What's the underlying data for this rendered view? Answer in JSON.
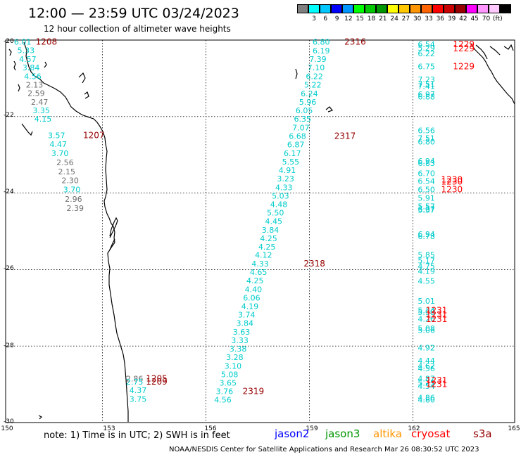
{
  "header": {
    "title": "12:00 — 23:59 UTC 03/24/2023",
    "subtitle": "12 hour collection of altimeter wave heights"
  },
  "colorbar": {
    "colors": [
      "#7f7f7f",
      "#00ffff",
      "#00c8ff",
      "#0000ff",
      "#0096ff",
      "#00ff00",
      "#00c800",
      "#009600",
      "#ffff00",
      "#ffc800",
      "#ff9600",
      "#ff6400",
      "#ff0000",
      "#c80000",
      "#960000",
      "#ff00ff",
      "#ff96ff",
      "#ffc8ff",
      "#000000"
    ],
    "labels": [
      "3",
      "6",
      "9",
      "12",
      "15",
      "18",
      "21",
      "24",
      "27",
      "30",
      "33",
      "36",
      "39",
      "42",
      "45",
      "70",
      "(ft)"
    ]
  },
  "axes": {
    "lat_ticks": [
      "-20",
      "-22",
      "-24",
      "-26",
      "-28",
      "-30"
    ],
    "lon_ticks": [
      "150",
      "153",
      "156",
      "159",
      "162",
      "165"
    ]
  },
  "track_colors": {
    "cyan": "#00cccc",
    "gray": "#6e6e6e",
    "time_dark": "#960000",
    "time_red": "#ff0000"
  },
  "tracks": [
    {
      "id": "t1208",
      "time": "1208",
      "time_lon": 151.2,
      "time_lat": -20.05,
      "time_color": "time_dark",
      "points": [
        {
          "lon": 150.5,
          "lat": -20.05,
          "v": "6.01",
          "c": "cyan"
        },
        {
          "lon": 150.6,
          "lat": -20.27,
          "v": "5.33",
          "c": "cyan"
        },
        {
          "lon": 150.65,
          "lat": -20.5,
          "v": "4.57",
          "c": "cyan"
        },
        {
          "lon": 150.75,
          "lat": -20.72,
          "v": "3.84",
          "c": "cyan"
        },
        {
          "lon": 150.8,
          "lat": -20.95,
          "v": "4.56",
          "c": "cyan"
        },
        {
          "lon": 150.85,
          "lat": -21.17,
          "v": "2.13",
          "c": "gray"
        },
        {
          "lon": 150.9,
          "lat": -21.39,
          "v": "2.59",
          "c": "gray"
        },
        {
          "lon": 151.0,
          "lat": -21.62,
          "v": "2.47",
          "c": "gray"
        },
        {
          "lon": 151.05,
          "lat": -21.84,
          "v": "3.35",
          "c": "cyan"
        },
        {
          "lon": 151.1,
          "lat": -22.06,
          "v": "4.15",
          "c": "cyan"
        }
      ]
    },
    {
      "id": "t1207",
      "time": "1207",
      "time_lon": 152.6,
      "time_lat": -22.49,
      "time_color": "time_dark",
      "points": [
        {
          "lon": 151.5,
          "lat": -22.49,
          "v": "3.57",
          "c": "cyan"
        },
        {
          "lon": 151.55,
          "lat": -22.72,
          "v": "4.47",
          "c": "cyan"
        },
        {
          "lon": 151.6,
          "lat": -22.96,
          "v": "3.70",
          "c": "cyan"
        },
        {
          "lon": 151.75,
          "lat": -23.2,
          "v": "2.56",
          "c": "gray"
        },
        {
          "lon": 151.8,
          "lat": -23.44,
          "v": "2.15",
          "c": "gray"
        },
        {
          "lon": 151.9,
          "lat": -23.67,
          "v": "2.30",
          "c": "gray"
        },
        {
          "lon": 151.95,
          "lat": -23.91,
          "v": "3.70",
          "c": "cyan"
        },
        {
          "lon": 152.0,
          "lat": -24.15,
          "v": "2.96",
          "c": "gray"
        },
        {
          "lon": 152.05,
          "lat": -24.39,
          "v": "2.39",
          "c": "gray"
        }
      ]
    },
    {
      "id": "t2316",
      "time": "2316",
      "time_lon": 160.3,
      "time_lat": -20.05,
      "time_color": "time_dark",
      "points": [
        {
          "lon": 159.3,
          "lat": -20.05,
          "v": "6.80",
          "c": "cyan"
        },
        {
          "lon": 159.3,
          "lat": -20.28,
          "v": "6.19",
          "c": "cyan"
        },
        {
          "lon": 159.2,
          "lat": -20.5,
          "v": "7.39",
          "c": "cyan"
        },
        {
          "lon": 159.15,
          "lat": -20.72,
          "v": "7.10",
          "c": "cyan"
        },
        {
          "lon": 159.1,
          "lat": -20.95,
          "v": "6.22",
          "c": "cyan"
        },
        {
          "lon": 159.05,
          "lat": -21.17,
          "v": "5.22",
          "c": "cyan"
        },
        {
          "lon": 158.95,
          "lat": -21.4,
          "v": "6.24",
          "c": "cyan"
        },
        {
          "lon": 158.9,
          "lat": -21.62,
          "v": "5.96",
          "c": "cyan"
        },
        {
          "lon": 158.8,
          "lat": -21.84,
          "v": "6.05",
          "c": "cyan"
        },
        {
          "lon": 158.75,
          "lat": -22.06,
          "v": "6.35",
          "c": "cyan"
        },
        {
          "lon": 158.7,
          "lat": -22.29,
          "v": "7.07",
          "c": "cyan"
        }
      ]
    },
    {
      "id": "t2317",
      "time": "2317",
      "time_lon": 160.0,
      "time_lat": -22.51,
      "time_color": "time_dark",
      "points": [
        {
          "lon": 158.6,
          "lat": -22.51,
          "v": "6.68",
          "c": "cyan"
        },
        {
          "lon": 158.55,
          "lat": -22.73,
          "v": "6.87",
          "c": "cyan"
        },
        {
          "lon": 158.45,
          "lat": -22.96,
          "v": "6.17",
          "c": "cyan"
        },
        {
          "lon": 158.4,
          "lat": -23.18,
          "v": "5.55",
          "c": "cyan"
        },
        {
          "lon": 158.3,
          "lat": -23.4,
          "v": "4.91",
          "c": "cyan"
        },
        {
          "lon": 158.25,
          "lat": -23.62,
          "v": "3.23",
          "c": "cyan"
        },
        {
          "lon": 158.2,
          "lat": -23.85,
          "v": "4.33",
          "c": "cyan"
        },
        {
          "lon": 158.1,
          "lat": -24.07,
          "v": "5.03",
          "c": "cyan"
        },
        {
          "lon": 158.05,
          "lat": -24.29,
          "v": "4.48",
          "c": "cyan"
        },
        {
          "lon": 157.95,
          "lat": -24.51,
          "v": "5.50",
          "c": "cyan"
        },
        {
          "lon": 157.9,
          "lat": -24.73,
          "v": "4.45",
          "c": "cyan"
        },
        {
          "lon": 157.8,
          "lat": -24.96,
          "v": "3.84",
          "c": "cyan"
        },
        {
          "lon": 157.75,
          "lat": -25.18,
          "v": "4.25",
          "c": "cyan"
        },
        {
          "lon": 157.7,
          "lat": -25.4,
          "v": "4.25",
          "c": "cyan"
        },
        {
          "lon": 157.6,
          "lat": -25.62,
          "v": "4.12",
          "c": "cyan"
        }
      ]
    },
    {
      "id": "t2318",
      "time": "2318",
      "time_lon": 159.1,
      "time_lat": -25.85,
      "time_color": "time_dark",
      "points": [
        {
          "lon": 157.5,
          "lat": -25.85,
          "v": "4.33",
          "c": "cyan"
        },
        {
          "lon": 157.45,
          "lat": -26.07,
          "v": "4.65",
          "c": "cyan"
        },
        {
          "lon": 157.35,
          "lat": -26.29,
          "v": "4.25",
          "c": "cyan"
        },
        {
          "lon": 157.3,
          "lat": -26.52,
          "v": "4.40",
          "c": "cyan"
        },
        {
          "lon": 157.25,
          "lat": -26.74,
          "v": "6.06",
          "c": "cyan"
        },
        {
          "lon": 157.2,
          "lat": -26.96,
          "v": "4.19",
          "c": "cyan"
        },
        {
          "lon": 157.1,
          "lat": -27.18,
          "v": "3.74",
          "c": "cyan"
        },
        {
          "lon": 157.05,
          "lat": -27.4,
          "v": "3.84",
          "c": "cyan"
        },
        {
          "lon": 156.95,
          "lat": -27.63,
          "v": "3.63",
          "c": "cyan"
        },
        {
          "lon": 156.9,
          "lat": -27.85,
          "v": "3.33",
          "c": "cyan"
        },
        {
          "lon": 156.85,
          "lat": -28.07,
          "v": "3.38",
          "c": "cyan"
        },
        {
          "lon": 156.75,
          "lat": -28.29,
          "v": "3.28",
          "c": "cyan"
        },
        {
          "lon": 156.7,
          "lat": -28.52,
          "v": "3.10",
          "c": "cyan"
        },
        {
          "lon": 156.6,
          "lat": -28.74,
          "v": "5.08",
          "c": "cyan"
        },
        {
          "lon": 156.55,
          "lat": -28.96,
          "v": "3.65",
          "c": "cyan"
        }
      ]
    },
    {
      "id": "t2319",
      "time": "2319",
      "time_lon": 157.3,
      "time_lat": -29.18,
      "time_color": "time_dark",
      "points": [
        {
          "lon": 156.45,
          "lat": -29.18,
          "v": "3.76",
          "c": "cyan"
        },
        {
          "lon": 156.4,
          "lat": -29.4,
          "v": "4.56",
          "c": "cyan"
        }
      ]
    },
    {
      "id": "t1205",
      "time": "1205",
      "time_lon": 154.45,
      "time_lat": -28.85,
      "time_color": "time_dark",
      "points": [
        {
          "lon": 153.8,
          "lat": -28.85,
          "v": "2.86",
          "c": "gray"
        }
      ]
    },
    {
      "id": "t1209",
      "time": "1209",
      "time_lon": 154.45,
      "time_lat": -28.93,
      "time_color": "time_dark",
      "points": [
        {
          "lon": 153.8,
          "lat": -28.93,
          "v": "2.75",
          "c": "cyan"
        },
        {
          "lon": 153.9,
          "lat": -29.15,
          "v": "4.37",
          "c": "cyan"
        },
        {
          "lon": 153.9,
          "lat": -29.38,
          "v": "3.75",
          "c": "cyan"
        }
      ]
    },
    {
      "id": "t1229",
      "time": "1229",
      "time_lon": 163.5,
      "time_lat": -20.11,
      "time_color": "time_red",
      "points": [
        {
          "lon": 162.4,
          "lat": -20.11,
          "v": "6.54",
          "c": "cyan"
        },
        {
          "lon": 162.4,
          "lat": -20.2,
          "v": "5.29",
          "c": "cyan"
        },
        {
          "lon": 162.4,
          "lat": -20.35,
          "v": "6.22",
          "c": "cyan"
        },
        {
          "lon": 162.4,
          "lat": -20.69,
          "v": "6.75",
          "c": "cyan"
        },
        {
          "lon": 162.4,
          "lat": -21.03,
          "v": "7.23",
          "c": "cyan"
        },
        {
          "lon": 162.4,
          "lat": -21.15,
          "v": "7.51",
          "c": "cyan"
        },
        {
          "lon": 162.4,
          "lat": -21.2,
          "v": "7.41",
          "c": "cyan"
        },
        {
          "lon": 162.4,
          "lat": -21.42,
          "v": "6.97",
          "c": "cyan"
        },
        {
          "lon": 162.4,
          "lat": -21.48,
          "v": "6.88",
          "c": "cyan"
        }
      ]
    },
    {
      "id": "t1229b",
      "time": "1229",
      "time_lon": 163.5,
      "time_lat": -20.22,
      "time_color": "time_red",
      "points": []
    },
    {
      "id": "t1229c",
      "time": "1229",
      "time_lon": 163.5,
      "time_lat": -20.69,
      "time_color": "time_red",
      "points": []
    },
    {
      "id": "t1230",
      "time": "1230",
      "time_lon": 163.15,
      "time_lat": -23.65,
      "time_color": "time_red",
      "points": [
        {
          "lon": 162.4,
          "lat": -22.36,
          "v": "6.56",
          "c": "cyan"
        },
        {
          "lon": 162.4,
          "lat": -22.56,
          "v": "7.51",
          "c": "cyan"
        },
        {
          "lon": 162.4,
          "lat": -22.66,
          "v": "6.80",
          "c": "cyan"
        },
        {
          "lon": 162.4,
          "lat": -23.16,
          "v": "6.94",
          "c": "cyan"
        },
        {
          "lon": 162.4,
          "lat": -23.22,
          "v": "6.83",
          "c": "cyan"
        },
        {
          "lon": 162.4,
          "lat": -23.48,
          "v": "6.70",
          "c": "cyan"
        },
        {
          "lon": 162.4,
          "lat": -23.69,
          "v": "6.54",
          "c": "cyan"
        },
        {
          "lon": 162.4,
          "lat": -23.91,
          "v": "6.50",
          "c": "cyan"
        },
        {
          "lon": 162.4,
          "lat": -24.13,
          "v": "5.91",
          "c": "cyan"
        },
        {
          "lon": 162.4,
          "lat": -24.35,
          "v": "5.57",
          "c": "cyan"
        },
        {
          "lon": 162.4,
          "lat": -24.42,
          "v": "6.07",
          "c": "cyan"
        },
        {
          "lon": 162.4,
          "lat": -24.44,
          "v": "5.37",
          "c": "cyan"
        }
      ]
    },
    {
      "id": "t1230b",
      "time": "1230",
      "time_lon": 163.15,
      "time_lat": -23.7,
      "time_color": "time_red",
      "points": []
    },
    {
      "id": "t1230c",
      "time": "1230",
      "time_lon": 163.15,
      "time_lat": -23.91,
      "time_color": "time_red",
      "points": []
    },
    {
      "id": "t1231",
      "time": "1231",
      "time_lon": 162.7,
      "time_lat": -27.18,
      "time_color": "time_red",
      "points": [
        {
          "lon": 162.4,
          "lat": -25.07,
          "v": "6.94",
          "c": "cyan"
        },
        {
          "lon": 162.4,
          "lat": -25.13,
          "v": "6.78",
          "c": "cyan"
        },
        {
          "lon": 162.4,
          "lat": -25.62,
          "v": "5.85",
          "c": "cyan"
        },
        {
          "lon": 162.4,
          "lat": -25.76,
          "v": "5.17",
          "c": "cyan"
        },
        {
          "lon": 162.4,
          "lat": -25.91,
          "v": "4.75",
          "c": "cyan"
        },
        {
          "lon": 162.4,
          "lat": -26.04,
          "v": "4.19",
          "c": "cyan"
        },
        {
          "lon": 162.4,
          "lat": -26.3,
          "v": "4.55",
          "c": "cyan"
        },
        {
          "lon": 162.4,
          "lat": -26.82,
          "v": "5.01",
          "c": "cyan"
        },
        {
          "lon": 162.4,
          "lat": -27.07,
          "v": "5.34",
          "c": "cyan"
        },
        {
          "lon": 162.4,
          "lat": -27.11,
          "v": "5.98",
          "c": "cyan"
        },
        {
          "lon": 162.4,
          "lat": -27.29,
          "v": "4.26",
          "c": "cyan"
        },
        {
          "lon": 162.4,
          "lat": -27.54,
          "v": "5.08",
          "c": "cyan"
        },
        {
          "lon": 162.4,
          "lat": -27.58,
          "v": "5.06",
          "c": "cyan"
        },
        {
          "lon": 162.4,
          "lat": -28.04,
          "v": "4.92",
          "c": "cyan"
        },
        {
          "lon": 162.4,
          "lat": -28.38,
          "v": "4.44",
          "c": "cyan"
        },
        {
          "lon": 162.4,
          "lat": -28.52,
          "v": "4.62",
          "c": "cyan"
        },
        {
          "lon": 162.4,
          "lat": -28.58,
          "v": "4.56",
          "c": "cyan"
        },
        {
          "lon": 162.4,
          "lat": -28.85,
          "v": "4.87",
          "c": "cyan"
        },
        {
          "lon": 162.4,
          "lat": -28.96,
          "v": "5.25",
          "c": "cyan"
        },
        {
          "lon": 162.4,
          "lat": -29.04,
          "v": "4.54",
          "c": "cyan"
        },
        {
          "lon": 162.4,
          "lat": -29.35,
          "v": "4.86",
          "c": "cyan"
        },
        {
          "lon": 162.4,
          "lat": -29.4,
          "v": "4.80",
          "c": "cyan"
        }
      ]
    },
    {
      "id": "t1231b",
      "time": "1231",
      "time_lon": 162.7,
      "time_lat": -27.07,
      "time_color": "time_red",
      "points": []
    },
    {
      "id": "t1231c",
      "time": "1231",
      "time_lon": 162.7,
      "time_lat": -27.3,
      "time_color": "time_red",
      "points": []
    },
    {
      "id": "t1231d",
      "time": "1231",
      "time_lon": 162.7,
      "time_lat": -28.9,
      "time_color": "time_red",
      "points": []
    },
    {
      "id": "t1231e",
      "time": "1231",
      "time_lon": 162.7,
      "time_lat": -29.0,
      "time_color": "time_red",
      "points": []
    }
  ],
  "legend": {
    "note": "note:  1) Time is in UTC;  2) SWH is in feet",
    "satellites": [
      {
        "name": "jason2",
        "color": "#0000ff"
      },
      {
        "name": "jason3",
        "color": "#009600"
      },
      {
        "name": "altika",
        "color": "#ff9600"
      },
      {
        "name": "cryosat",
        "color": "#ff0000"
      },
      {
        "name": "s3a",
        "color": "#960000"
      }
    ]
  },
  "footer": {
    "credit": "NOAA/NESDIS Center for Satellite Applications and Research    Mar 26 08:30:52 UTC 2023"
  }
}
